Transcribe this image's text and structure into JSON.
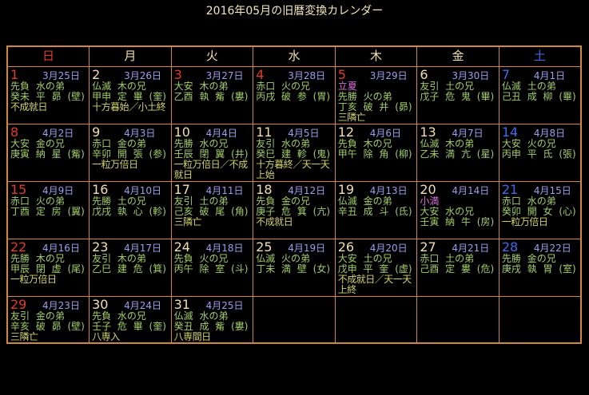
{
  "title": "2016年05月の旧暦変換カレンダー",
  "colors": {
    "background": "#000000",
    "border": "#d1883c",
    "title": "#f2e7bb",
    "cream": "#f0dfae",
    "red": "#e23a2e",
    "blue": "#4168e8",
    "lunar": "#9a9eec",
    "green": "#a3cc68",
    "olive": "#d2d26e",
    "sekki": "#de6ede"
  },
  "weekdays": [
    {
      "label": "日",
      "type": "sunday"
    },
    {
      "label": "月",
      "type": "weekday"
    },
    {
      "label": "火",
      "type": "weekday"
    },
    {
      "label": "水",
      "type": "weekday"
    },
    {
      "label": "木",
      "type": "weekday"
    },
    {
      "label": "金",
      "type": "weekday"
    },
    {
      "label": "土",
      "type": "saturday"
    }
  ],
  "cells": [
    {
      "day": "1",
      "type": "holiday",
      "lunar": "3月25日",
      "rokuyou": "先負 水の弟",
      "kanshi": "癸未 平 昴 (壁)",
      "special": "不成就日"
    },
    {
      "day": "2",
      "type": "weekday",
      "lunar": "3月26日",
      "rokuyou": "仏滅 木の兄",
      "kanshi": "甲申 定 畢 (奎)",
      "special": "十方暮始／小土終"
    },
    {
      "day": "3",
      "type": "holiday",
      "lunar": "3月27日",
      "rokuyou": "大安 木の弟",
      "kanshi": "乙酉 執 觜 (婁)"
    },
    {
      "day": "4",
      "type": "holiday",
      "lunar": "3月28日",
      "rokuyou": "赤口 火の兄",
      "kanshi": "丙戌 破 参 (胃)"
    },
    {
      "day": "5",
      "type": "holiday",
      "lunar": "3月29日",
      "sekki": "立夏",
      "rokuyou": "先勝 火の弟",
      "kanshi": "丁亥 破 井 (昴)",
      "special": "三隣亡"
    },
    {
      "day": "6",
      "type": "weekday",
      "lunar": "3月30日",
      "rokuyou": "友引 土の兄",
      "kanshi": "戊子 危 鬼 (畢)"
    },
    {
      "day": "7",
      "type": "saturday",
      "lunar": "4月1日",
      "rokuyou": "仏滅 土の弟",
      "kanshi": "己丑 成 柳 (畢)"
    },
    {
      "day": "8",
      "type": "holiday",
      "lunar": "4月2日",
      "rokuyou": "大安 金の兄",
      "kanshi": "庚寅 納 星 (觜)"
    },
    {
      "day": "9",
      "type": "weekday",
      "lunar": "4月3日",
      "rokuyou": "赤口 金の弟",
      "kanshi": "辛卯 開 張 (参)",
      "special": "一粒万倍日"
    },
    {
      "day": "10",
      "type": "weekday",
      "lunar": "4月4日",
      "rokuyou": "先勝 水の兄",
      "kanshi": "壬辰 閉 翼 (井)",
      "special": "一粒万倍日／不成就日"
    },
    {
      "day": "11",
      "type": "weekday",
      "lunar": "4月5日",
      "rokuyou": "友引 水の弟",
      "kanshi": "癸巳 建 軫 (鬼)",
      "special": "十方暮終／天一天上始"
    },
    {
      "day": "12",
      "type": "weekday",
      "lunar": "4月6日",
      "rokuyou": "先負 木の兄",
      "kanshi": "甲午 除 角 (柳)"
    },
    {
      "day": "13",
      "type": "weekday",
      "lunar": "4月7日",
      "rokuyou": "仏滅 木の弟",
      "kanshi": "乙未 満 亢 (星)"
    },
    {
      "day": "14",
      "type": "saturday",
      "lunar": "4月8日",
      "rokuyou": "大安 火の兄",
      "kanshi": "丙申 平 氐 (張)"
    },
    {
      "day": "15",
      "type": "holiday",
      "lunar": "4月9日",
      "rokuyou": "赤口 火の弟",
      "kanshi": "丁酉 定 房 (翼)"
    },
    {
      "day": "16",
      "type": "weekday",
      "lunar": "4月10日",
      "rokuyou": "先勝 土の兄",
      "kanshi": "戊戌 執 心 (軫)"
    },
    {
      "day": "17",
      "type": "weekday",
      "lunar": "4月11日",
      "rokuyou": "友引 土の弟",
      "kanshi": "己亥 破 尾 (角)",
      "special": "三隣亡"
    },
    {
      "day": "18",
      "type": "weekday",
      "lunar": "4月12日",
      "rokuyou": "先負 金の兄",
      "kanshi": "庚子 危 箕 (亢)",
      "special": "不成就日"
    },
    {
      "day": "19",
      "type": "weekday",
      "lunar": "4月13日",
      "rokuyou": "仏滅 金の弟",
      "kanshi": "辛丑 成 斗 (氐)"
    },
    {
      "day": "20",
      "type": "weekday",
      "lunar": "4月14日",
      "sekki": "小満",
      "rokuyou": "大安 水の兄",
      "kanshi": "壬寅 納 牛 (房)"
    },
    {
      "day": "21",
      "type": "saturday",
      "lunar": "4月15日",
      "rokuyou": "赤口 水の弟",
      "kanshi": "癸卯 開 女 (心)",
      "special": "一粒万倍日"
    },
    {
      "day": "22",
      "type": "holiday",
      "lunar": "4月16日",
      "rokuyou": "先勝 木の兄",
      "kanshi": "甲辰 閉 虚 (尾)",
      "special": "一粒万倍日"
    },
    {
      "day": "23",
      "type": "weekday",
      "lunar": "4月17日",
      "rokuyou": "友引 木の弟",
      "kanshi": "乙巳 建 危 (箕)"
    },
    {
      "day": "24",
      "type": "weekday",
      "lunar": "4月18日",
      "rokuyou": "先負 火の兄",
      "kanshi": "丙午 除 室 (斗)"
    },
    {
      "day": "25",
      "type": "weekday",
      "lunar": "4月19日",
      "rokuyou": "仏滅 火の弟",
      "kanshi": "丁未 満 壁 (女)"
    },
    {
      "day": "26",
      "type": "weekday",
      "lunar": "4月20日",
      "rokuyou": "大安 土の兄",
      "kanshi": "戊申 平 奎 (虚)",
      "special": "不成就日／天一天上終"
    },
    {
      "day": "27",
      "type": "weekday",
      "lunar": "4月21日",
      "rokuyou": "赤口 土の弟",
      "kanshi": "己酉 定 婁 (危)"
    },
    {
      "day": "28",
      "type": "saturday",
      "lunar": "4月22日",
      "rokuyou": "先勝 金の兄",
      "kanshi": "庚戌 執 胃 (室)"
    },
    {
      "day": "29",
      "type": "holiday",
      "lunar": "4月23日",
      "rokuyou": "友引 金の弟",
      "kanshi": "辛亥 破 昴 (壁)",
      "special": "三隣亡"
    },
    {
      "day": "30",
      "type": "weekday",
      "lunar": "4月24日",
      "rokuyou": "先負 水の兄",
      "kanshi": "壬子 危 畢 (奎)",
      "special": "八専入"
    },
    {
      "day": "31",
      "type": "weekday",
      "lunar": "4月25日",
      "rokuyou": "仏滅 水の弟",
      "kanshi": "癸丑 成 觜 (婁)",
      "special": "八専間日"
    },
    {
      "type": "empty"
    },
    {
      "type": "empty"
    },
    {
      "type": "empty"
    },
    {
      "type": "empty"
    }
  ]
}
